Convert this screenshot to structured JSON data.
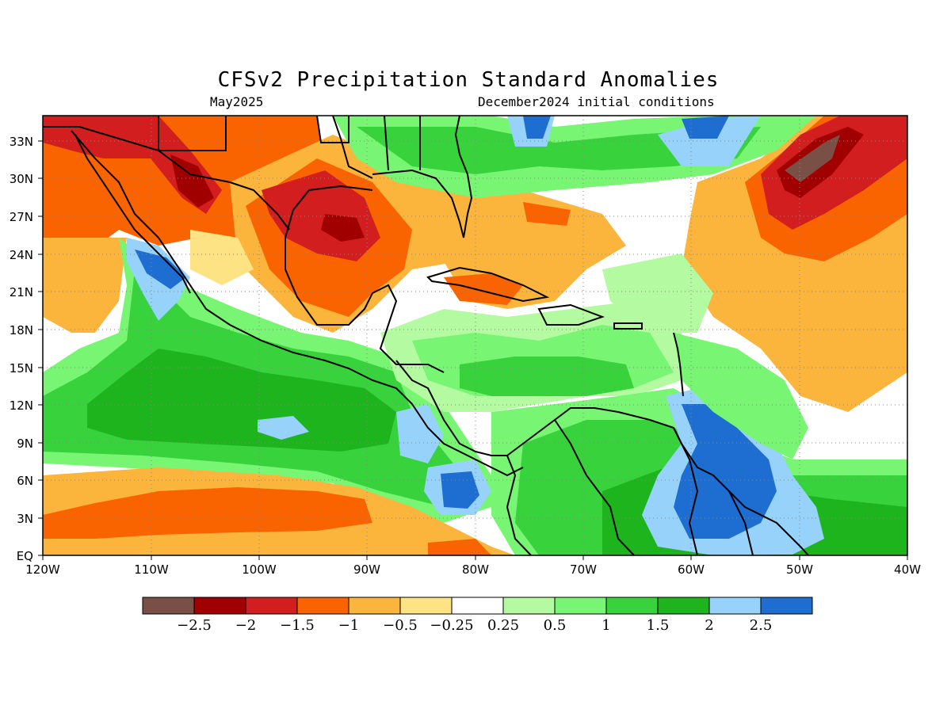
{
  "title": "CFSv2 Precipitation Standard Anomalies",
  "subtitle_left": "May2025",
  "subtitle_right": "December2024 initial conditions",
  "map": {
    "lon_range": [
      -120,
      -40
    ],
    "lat_range": [
      0,
      35
    ],
    "lon_ticks": [
      {
        "value": -120,
        "label": "120W"
      },
      {
        "value": -110,
        "label": "110W"
      },
      {
        "value": -100,
        "label": "100W"
      },
      {
        "value": -90,
        "label": "90W"
      },
      {
        "value": -80,
        "label": "80W"
      },
      {
        "value": -70,
        "label": "70W"
      },
      {
        "value": -60,
        "label": "60W"
      },
      {
        "value": -50,
        "label": "50W"
      },
      {
        "value": -40,
        "label": "40W"
      }
    ],
    "lat_ticks": [
      {
        "value": 0,
        "label": "EQ"
      },
      {
        "value": 3,
        "label": "3N"
      },
      {
        "value": 6,
        "label": "6N"
      },
      {
        "value": 9,
        "label": "9N"
      },
      {
        "value": 12,
        "label": "12N"
      },
      {
        "value": 15,
        "label": "15N"
      },
      {
        "value": 18,
        "label": "18N"
      },
      {
        "value": 21,
        "label": "21N"
      },
      {
        "value": 24,
        "label": "24N"
      },
      {
        "value": 27,
        "label": "27N"
      },
      {
        "value": 30,
        "label": "30N"
      },
      {
        "value": 33,
        "label": "33N"
      }
    ],
    "background_color": "#ffffff",
    "gridlines": "dotted"
  },
  "colorbar": {
    "colors": [
      "#7a5046",
      "#a00000",
      "#d21e1e",
      "#fa6400",
      "#fbb43c",
      "#fde384",
      "#ffffff",
      "#b4faa0",
      "#78f573",
      "#37d23c",
      "#1eb41e",
      "#96d2fa",
      "#1e6ed2"
    ],
    "labels": [
      "−2.5",
      "−2",
      "−1.5",
      "−1",
      "−0.5",
      "−0.25",
      "0.25",
      "0.5",
      "1",
      "1.5",
      "2",
      "2.5"
    ]
  },
  "anomaly_regions": [
    {
      "name": "southwest-us-mexico-dry",
      "level": "-1",
      "lon": [
        -120,
        -96
      ],
      "lat": [
        23,
        35
      ]
    },
    {
      "name": "west-mexico-very-dry",
      "level": "-2",
      "lon": [
        -108,
        -103
      ],
      "lat": [
        26,
        31
      ]
    },
    {
      "name": "gulf-of-mexico-dry",
      "level": "-1.5",
      "lon": [
        -97,
        -85
      ],
      "lat": [
        22,
        30
      ]
    },
    {
      "name": "gulf-core-very-dry",
      "level": "-2",
      "lon": [
        -93,
        -88
      ],
      "lat": [
        24.5,
        27.5
      ]
    },
    {
      "name": "florida-bahamas-dry",
      "level": "-0.5",
      "lon": [
        -88,
        -70
      ],
      "lat": [
        19,
        28
      ]
    },
    {
      "name": "north-atlantic-dry",
      "level": "-2",
      "lon": [
        -54,
        -40
      ],
      "lat": [
        24,
        35
      ]
    },
    {
      "name": "north-atlantic-core",
      "level": "-2.5",
      "lon": [
        -50,
        -46
      ],
      "lat": [
        30,
        33
      ]
    },
    {
      "name": "central-atlantic-dry",
      "level": "-1",
      "lon": [
        -55,
        -40
      ],
      "lat": [
        12,
        23
      ]
    },
    {
      "name": "southeast-us-wet",
      "level": "1.5",
      "lon": [
        -88,
        -76
      ],
      "lat": [
        30,
        35
      ]
    },
    {
      "name": "western-atlantic-wet",
      "level": "1",
      "lon": [
        -74,
        -54
      ],
      "lat": [
        27,
        35
      ]
    },
    {
      "name": "east-pacific-wet",
      "level": "1.5",
      "lon": [
        -120,
        -82
      ],
      "lat": [
        8,
        22
      ]
    },
    {
      "name": "gulf-of-california-wet",
      "level": "2.5",
      "lon": [
        -111,
        -107
      ],
      "lat": [
        20,
        24
      ]
    },
    {
      "name": "eastern-pacific-equatorial-dry",
      "level": "-1",
      "lon": [
        -120,
        -80
      ],
      "lat": [
        0,
        5
      ]
    },
    {
      "name": "caribbean-wet",
      "level": "1",
      "lon": [
        -82,
        -60
      ],
      "lat": [
        8,
        18
      ]
    },
    {
      "name": "guiana-wet",
      "level": "2.5",
      "lon": [
        -62,
        -52
      ],
      "lat": [
        2,
        12
      ]
    },
    {
      "name": "panama-wet",
      "level": "2.5",
      "lon": [
        -82,
        -78
      ],
      "lat": [
        4,
        7
      ]
    }
  ]
}
